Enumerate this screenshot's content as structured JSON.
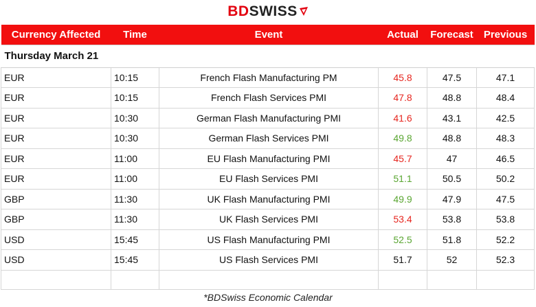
{
  "brand": {
    "part1": "BD",
    "part2": "SWISS",
    "colors": {
      "red": "#e3000f",
      "dark": "#222222"
    }
  },
  "table": {
    "headers": {
      "currency": "Currency Affected",
      "time": "Time",
      "event": "Event",
      "actual": "Actual",
      "forecast": "Forecast",
      "previous": "Previous"
    },
    "day_label": "Thursday March 21",
    "header_color": "#f20f0f",
    "rows": [
      {
        "currency": "EUR",
        "time": "10:15",
        "event": "French Flash Manufacturing PM",
        "actual": "45.8",
        "actual_status": "neg",
        "forecast": "47.5",
        "previous": "47.1"
      },
      {
        "currency": "EUR",
        "time": "10:15",
        "event": "French Flash Services PMI",
        "actual": "47.8",
        "actual_status": "neg",
        "forecast": "48.8",
        "previous": "48.4"
      },
      {
        "currency": "EUR",
        "time": "10:30",
        "event": "German Flash Manufacturing PMI",
        "actual": "41.6",
        "actual_status": "neg",
        "forecast": "43.1",
        "previous": "42.5"
      },
      {
        "currency": "EUR",
        "time": "10:30",
        "event": "German Flash Services PMI",
        "actual": "49.8",
        "actual_status": "pos",
        "forecast": "48.8",
        "previous": "48.3"
      },
      {
        "currency": "EUR",
        "time": "11:00",
        "event": "EU Flash Manufacturing PMI",
        "actual": "45.7",
        "actual_status": "neg",
        "forecast": "47",
        "previous": "46.5"
      },
      {
        "currency": "EUR",
        "time": "11:00",
        "event": "EU Flash Services PMI",
        "actual": "51.1",
        "actual_status": "pos",
        "forecast": "50.5",
        "previous": "50.2"
      },
      {
        "currency": "GBP",
        "time": "11:30",
        "event": "UK Flash Manufacturing PMI",
        "actual": "49.9",
        "actual_status": "pos",
        "forecast": "47.9",
        "previous": "47.5"
      },
      {
        "currency": "GBP",
        "time": "11:30",
        "event": "UK Flash Services PMI",
        "actual": "53.4",
        "actual_status": "neg",
        "forecast": "53.8",
        "previous": "53.8"
      },
      {
        "currency": "USD",
        "time": "15:45",
        "event": "US Flash Manufacturing PMI",
        "actual": "52.5",
        "actual_status": "pos",
        "forecast": "51.8",
        "previous": "52.2"
      },
      {
        "currency": "USD",
        "time": "15:45",
        "event": "US Flash Services PMI",
        "actual": "51.7",
        "actual_status": "neu",
        "forecast": "52",
        "previous": "52.3"
      }
    ]
  },
  "caption": "*BDSwiss Economic Calendar",
  "status_colors": {
    "neg": "#e6261f",
    "pos": "#5aa632",
    "neu": "#111111"
  }
}
